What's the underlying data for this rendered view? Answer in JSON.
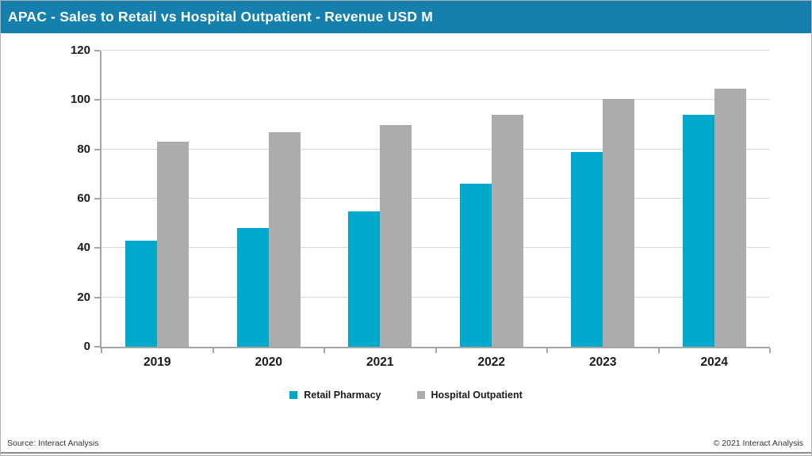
{
  "header": {
    "title": "APAC - Sales to Retail vs Hospital Outpatient - Revenue USD M"
  },
  "chart_data": {
    "type": "bar",
    "title": "APAC - Sales to Retail vs Hospital Outpatient - Revenue USD M",
    "categories": [
      "2019",
      "2020",
      "2021",
      "2022",
      "2023",
      "2024"
    ],
    "series": [
      {
        "name": "Retail Pharmacy",
        "color": "#00a9cb",
        "values": [
          43,
          48,
          55,
          66,
          79,
          94
        ]
      },
      {
        "name": "Hospital Outpatient",
        "color": "#acacae",
        "values": [
          83,
          87,
          90,
          94,
          100.5,
          104.5
        ]
      }
    ],
    "xlabel": "",
    "ylabel": "",
    "ylim": [
      0,
      120
    ],
    "ytick_step": 20,
    "yticks": [
      0,
      20,
      40,
      60,
      80,
      100,
      120
    ],
    "grid": true,
    "legend_position": "bottom"
  },
  "footer": {
    "source": "Source: Interact Analysis",
    "copyright": "© 2021 Interact Analysis"
  },
  "colors": {
    "header_bg": "#157fae",
    "retail_bar": "#00a9cb",
    "hospital_bar": "#acacae",
    "gridline": "#d9d9d9",
    "axis": "#a6a6a6",
    "text": "#1a1a1a"
  }
}
